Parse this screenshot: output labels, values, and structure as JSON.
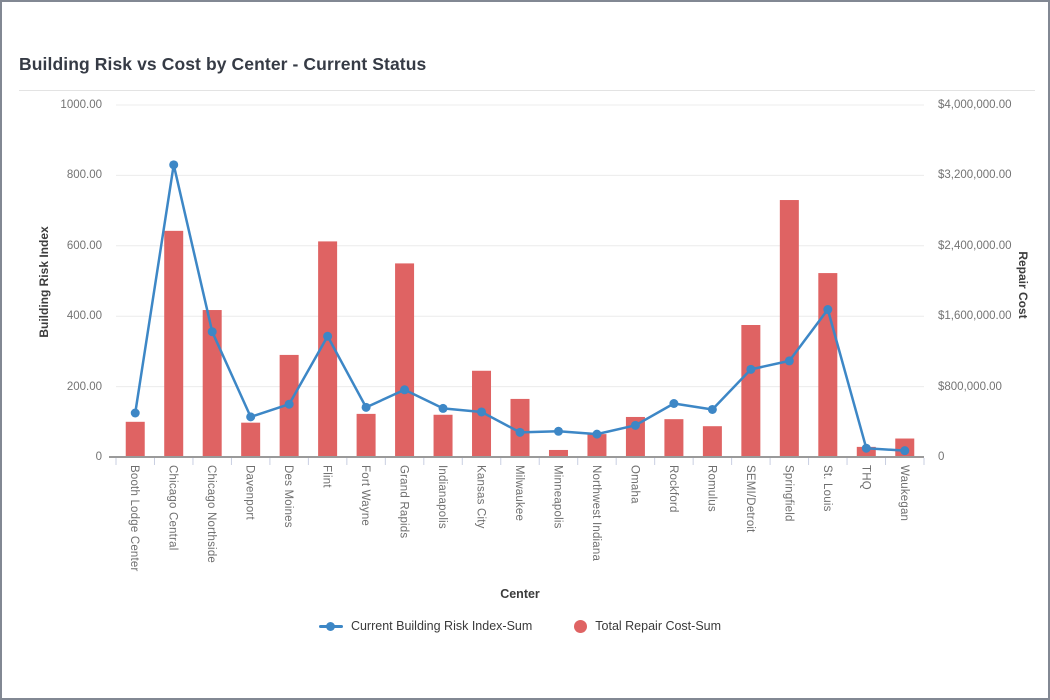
{
  "window": {
    "background": "#ffffff",
    "border_color": "#828893"
  },
  "header": {
    "title": "Building Risk vs Cost by Center - Current Status"
  },
  "chart_data": {
    "type": "combo",
    "title": "Building Risk vs Cost by Center - Current Status",
    "categories": [
      "Booth Lodge Center",
      "Chicago Central",
      "Chicago Northside",
      "Davenport",
      "Des Moines",
      "Flint",
      "Fort Wayne",
      "Grand Rapids",
      "Indianapolis",
      "Kansas City",
      "Milwaukee",
      "Minneapolis",
      "Northwest Indiana",
      "Omaha",
      "Rockford",
      "Romulus",
      "SEMI/Detroit",
      "Springfield",
      "St. Louis",
      "THQ",
      "Waukegan"
    ],
    "series": [
      {
        "name": "Current Building Risk Index-Sum",
        "type": "line",
        "axis": "left",
        "color": "#3d87c6",
        "values": [
          125,
          830,
          356,
          114,
          150,
          343,
          141,
          191,
          138,
          128,
          70,
          73,
          65,
          90,
          152,
          135,
          249,
          273,
          419,
          25,
          18
        ]
      },
      {
        "name": "Total Repair Cost-Sum",
        "type": "bar",
        "axis": "right",
        "color": "#df6363",
        "values": [
          400000,
          2570000,
          1670000,
          390000,
          1160000,
          2450000,
          490000,
          2200000,
          480000,
          980000,
          660000,
          80000,
          260000,
          455000,
          430000,
          350000,
          1500000,
          2920000,
          2090000,
          115000,
          210000
        ]
      }
    ],
    "xlabel": "Center",
    "left_axis": {
      "label": "Building Risk Index",
      "min": 0,
      "max": 1000,
      "tick_labels": [
        "0",
        "200.00",
        "400.00",
        "600.00",
        "800.00",
        "1000.00"
      ]
    },
    "right_axis": {
      "label": "Repair Cost",
      "min": 0,
      "max": 4000000,
      "tick_labels": [
        "0",
        "$800,000.00",
        "$1,600,000.00",
        "$2,400,000.00",
        "$3,200,000.00",
        "$4,000,000.00"
      ]
    },
    "legend": [
      "Current Building Risk Index-Sum",
      "Total Repair Cost-Sum"
    ],
    "legend_position": "bottom",
    "grid": "horizontal",
    "grid_color": "#ececec",
    "axis_line_color": "#9a9a9a",
    "tick_mark_color": "#c9cfe2"
  }
}
